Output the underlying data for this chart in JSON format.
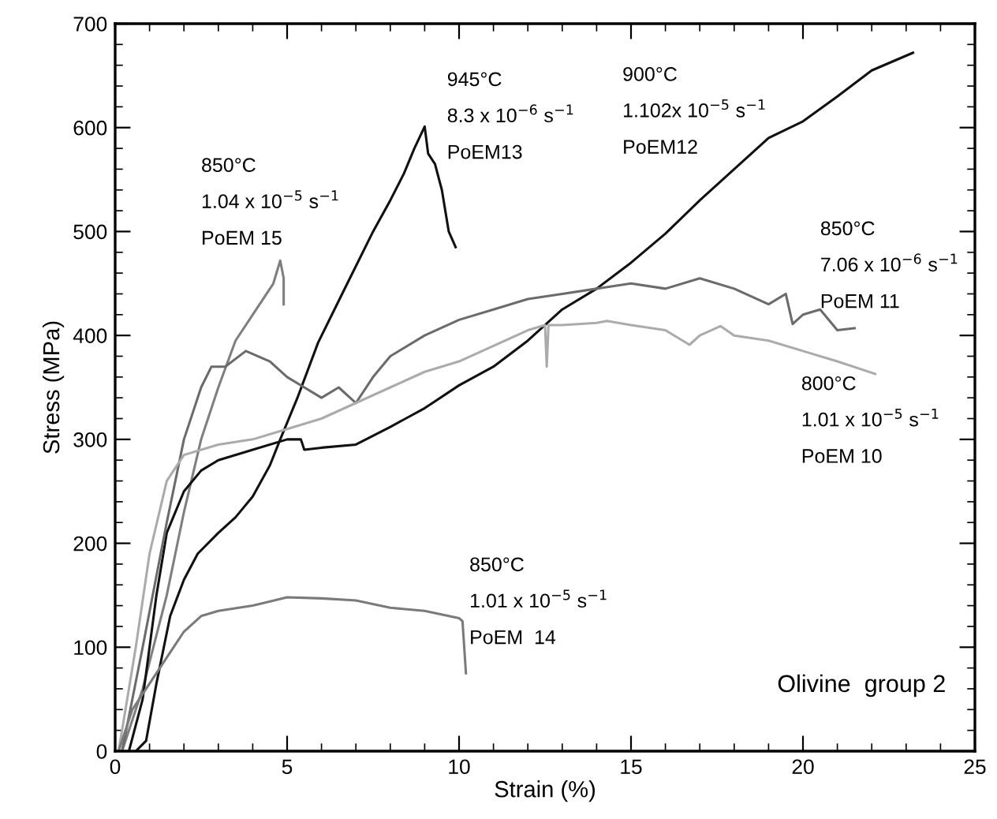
{
  "chart_data": {
    "type": "line",
    "xlabel": "Strain (%)",
    "ylabel": "Stress (MPa)",
    "xlim": [
      0,
      25
    ],
    "ylim": [
      0,
      700
    ],
    "xticks": [
      0,
      5,
      10,
      15,
      20,
      25
    ],
    "yticks": [
      0,
      100,
      200,
      300,
      400,
      500,
      600,
      700
    ],
    "grid": false,
    "legend": false,
    "marker": "none",
    "line_style": "solid",
    "series": [
      {
        "color": "#7f7f7f",
        "x": [
          0.2,
          0.8,
          1.5,
          2,
          2.5,
          3,
          3.5,
          4,
          4.3,
          4.6,
          4.8,
          4.9,
          4.9
        ],
        "values": [
          0,
          60,
          150,
          230,
          300,
          350,
          395,
          420,
          435,
          450,
          472,
          455,
          430
        ]
      },
      {
        "color": "#111111",
        "x": [
          0.6,
          0.9,
          1.2,
          1.6,
          2,
          2.4,
          3,
          3.5,
          4,
          4.5,
          4.8,
          5.3,
          5.9,
          6.6,
          7.5,
          8,
          8.4,
          8.7,
          9,
          9.1,
          9.3,
          9.5,
          9.7,
          9.9
        ],
        "values": [
          0,
          10,
          65,
          130,
          165,
          190,
          210,
          225,
          245,
          275,
          300,
          340,
          393,
          440,
          500,
          530,
          556,
          580,
          601,
          575,
          565,
          540,
          500,
          485
        ]
      },
      {
        "color": "#111111",
        "x": [
          0.4,
          0.8,
          1.2,
          1.5,
          2,
          2.5,
          3,
          4,
          5,
          5.4,
          5.5,
          6,
          7,
          8,
          9,
          10,
          11,
          12,
          13,
          14,
          15,
          16,
          17,
          18,
          19,
          20,
          21,
          22,
          23.2
        ],
        "values": [
          0,
          50,
          150,
          210,
          250,
          270,
          280,
          290,
          300,
          300,
          290,
          292,
          295,
          312,
          330,
          352,
          370,
          395,
          425,
          445,
          470,
          498,
          530,
          560,
          590,
          606,
          630,
          655,
          672
        ]
      },
      {
        "color": "#6b6b6b",
        "x": [
          0.2,
          0.8,
          1.5,
          2,
          2.5,
          2.8,
          3.2,
          3.8,
          4.5,
          5,
          5.5,
          6,
          6.5,
          7,
          7.5,
          8,
          9,
          10,
          11,
          12,
          13,
          14,
          15,
          16,
          17,
          18,
          19,
          19.5,
          19.7,
          20,
          20.5,
          21,
          21.5
        ],
        "values": [
          0,
          100,
          220,
          300,
          350,
          370,
          370,
          385,
          375,
          360,
          350,
          340,
          350,
          335,
          360,
          380,
          400,
          415,
          425,
          435,
          440,
          445,
          450,
          445,
          455,
          445,
          430,
          440,
          411,
          420,
          425,
          405,
          407
        ]
      },
      {
        "color": "#ababab",
        "x": [
          0.1,
          0.6,
          1,
          1.5,
          2,
          3,
          4,
          5,
          6,
          7,
          8,
          9,
          10,
          11,
          12,
          12.5,
          12.55,
          12.6,
          13,
          14,
          14.3,
          15,
          16,
          16.7,
          17,
          17.6,
          18,
          19,
          20,
          21,
          22.1
        ],
        "values": [
          0,
          100,
          190,
          260,
          285,
          295,
          300,
          310,
          320,
          335,
          350,
          365,
          375,
          390,
          405,
          410,
          370,
          410,
          410,
          412,
          414,
          410,
          405,
          391,
          400,
          409,
          400,
          395,
          385,
          375,
          363
        ]
      },
      {
        "color": "#7a7a7a",
        "x": [
          0.1,
          0.5,
          1,
          1.5,
          2,
          2.5,
          3,
          4,
          5,
          6,
          7,
          8,
          9,
          10,
          10.1,
          10.2
        ],
        "values": [
          0,
          40,
          65,
          90,
          115,
          130,
          135,
          140,
          148,
          147,
          145,
          138,
          135,
          128,
          125,
          75
        ]
      }
    ],
    "annotations": [
      "850°C",
      "1.04 x 10$^{−5}$ s$^{−1}$",
      "PoEM 15",
      "945°C",
      "8.3 x 10$^{−6}$ s$^{−1}$",
      "PoEM13",
      "900°C",
      "1.102x 10$^{−5}$ s$^{−1}$",
      "PoEM12",
      "850°C",
      "7.06 x 10$^{−6}$ s$^{−1}$",
      "PoEM 11",
      "800°C",
      "1.01 x 10$^{−5}$ s$^{−1}$",
      "PoEM 10",
      "850°C",
      "1.01 x 10$^{−5}$ s$^{−1}$",
      "PoEM  14",
      "Olivine  group 2"
    ]
  }
}
